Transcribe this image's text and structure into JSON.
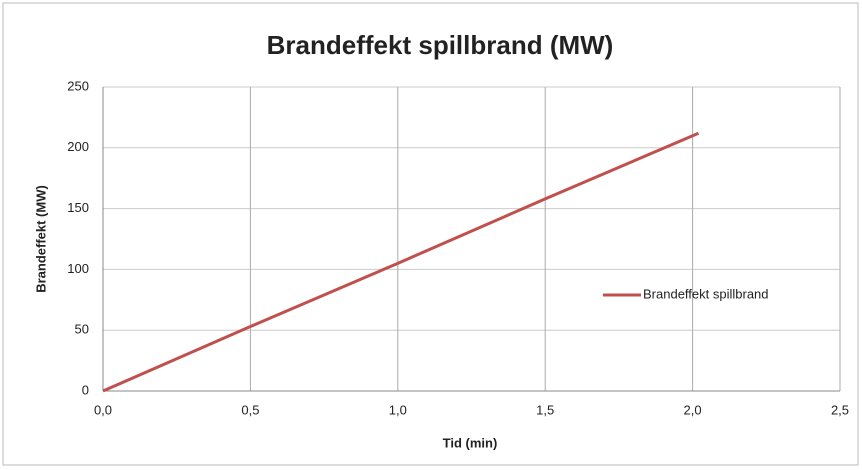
{
  "chart_data": {
    "type": "line",
    "title": "Brandeffekt spillbrand (MW)",
    "x_label": "Tid (min)",
    "y_label": "Brandeffekt (MW)",
    "x": [
      0,
      0.5,
      1,
      1.5,
      2.02
    ],
    "series": [
      {
        "name": "Brandeffekt spillbrand",
        "color": "#c0504d",
        "values": [
          0,
          53,
          105,
          158,
          212
        ]
      }
    ],
    "xlim": [
      0,
      2.5
    ],
    "xticks": [
      {
        "value": 0,
        "label": "0,0"
      },
      {
        "value": 0.5,
        "label": "0,5"
      },
      {
        "value": 1,
        "label": "1,0"
      },
      {
        "value": 1.5,
        "label": "1,5"
      },
      {
        "value": 2,
        "label": "2,0"
      },
      {
        "value": 2.5,
        "label": "2,5"
      }
    ],
    "ylim": [
      0,
      250
    ],
    "yticks": [
      0,
      50,
      100,
      150,
      200,
      250
    ],
    "grid": true,
    "legend": "right"
  }
}
